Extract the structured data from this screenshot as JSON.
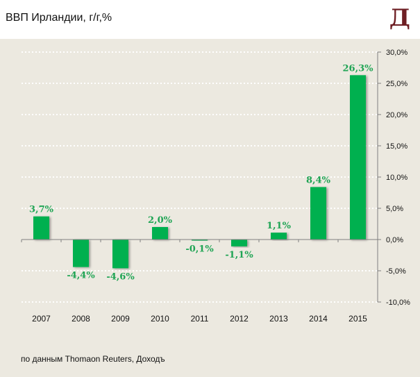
{
  "header": {
    "title": "ВВП Ирландии, г/г,%",
    "logo": "Д"
  },
  "footer": {
    "source": "по данным Thomaon Reuters, Доходъ"
  },
  "colors": {
    "bar": "#00b050",
    "label": "#1fa454",
    "background": "#ece9e0",
    "logo": "#6e1f24"
  },
  "chart_data": {
    "type": "bar",
    "title": "ВВП Ирландии, г/г,%",
    "xlabel": "",
    "ylabel": "",
    "categories": [
      "2007",
      "2008",
      "2009",
      "2010",
      "2011",
      "2012",
      "2013",
      "2014",
      "2015"
    ],
    "values": [
      3.7,
      -4.4,
      -4.6,
      2.0,
      -0.1,
      -1.1,
      1.1,
      8.4,
      26.3
    ],
    "data_labels": [
      "3,7%",
      "-4,4%",
      "-4,6%",
      "2,0%",
      "-0,1%",
      "-1,1%",
      "1,1%",
      "8,4%",
      "26,3%"
    ],
    "ylim": [
      -10,
      30
    ],
    "yticks": [
      30,
      25,
      20,
      15,
      10,
      5,
      0,
      -5,
      -10
    ],
    "ytick_labels": [
      "30,0%",
      "25,0%",
      "20,0%",
      "15,0%",
      "10,0%",
      "5,0%",
      "0,0%",
      "-5,0%",
      "-10,0%"
    ],
    "y_axis_position": "right",
    "grid": true,
    "legend": "none"
  }
}
